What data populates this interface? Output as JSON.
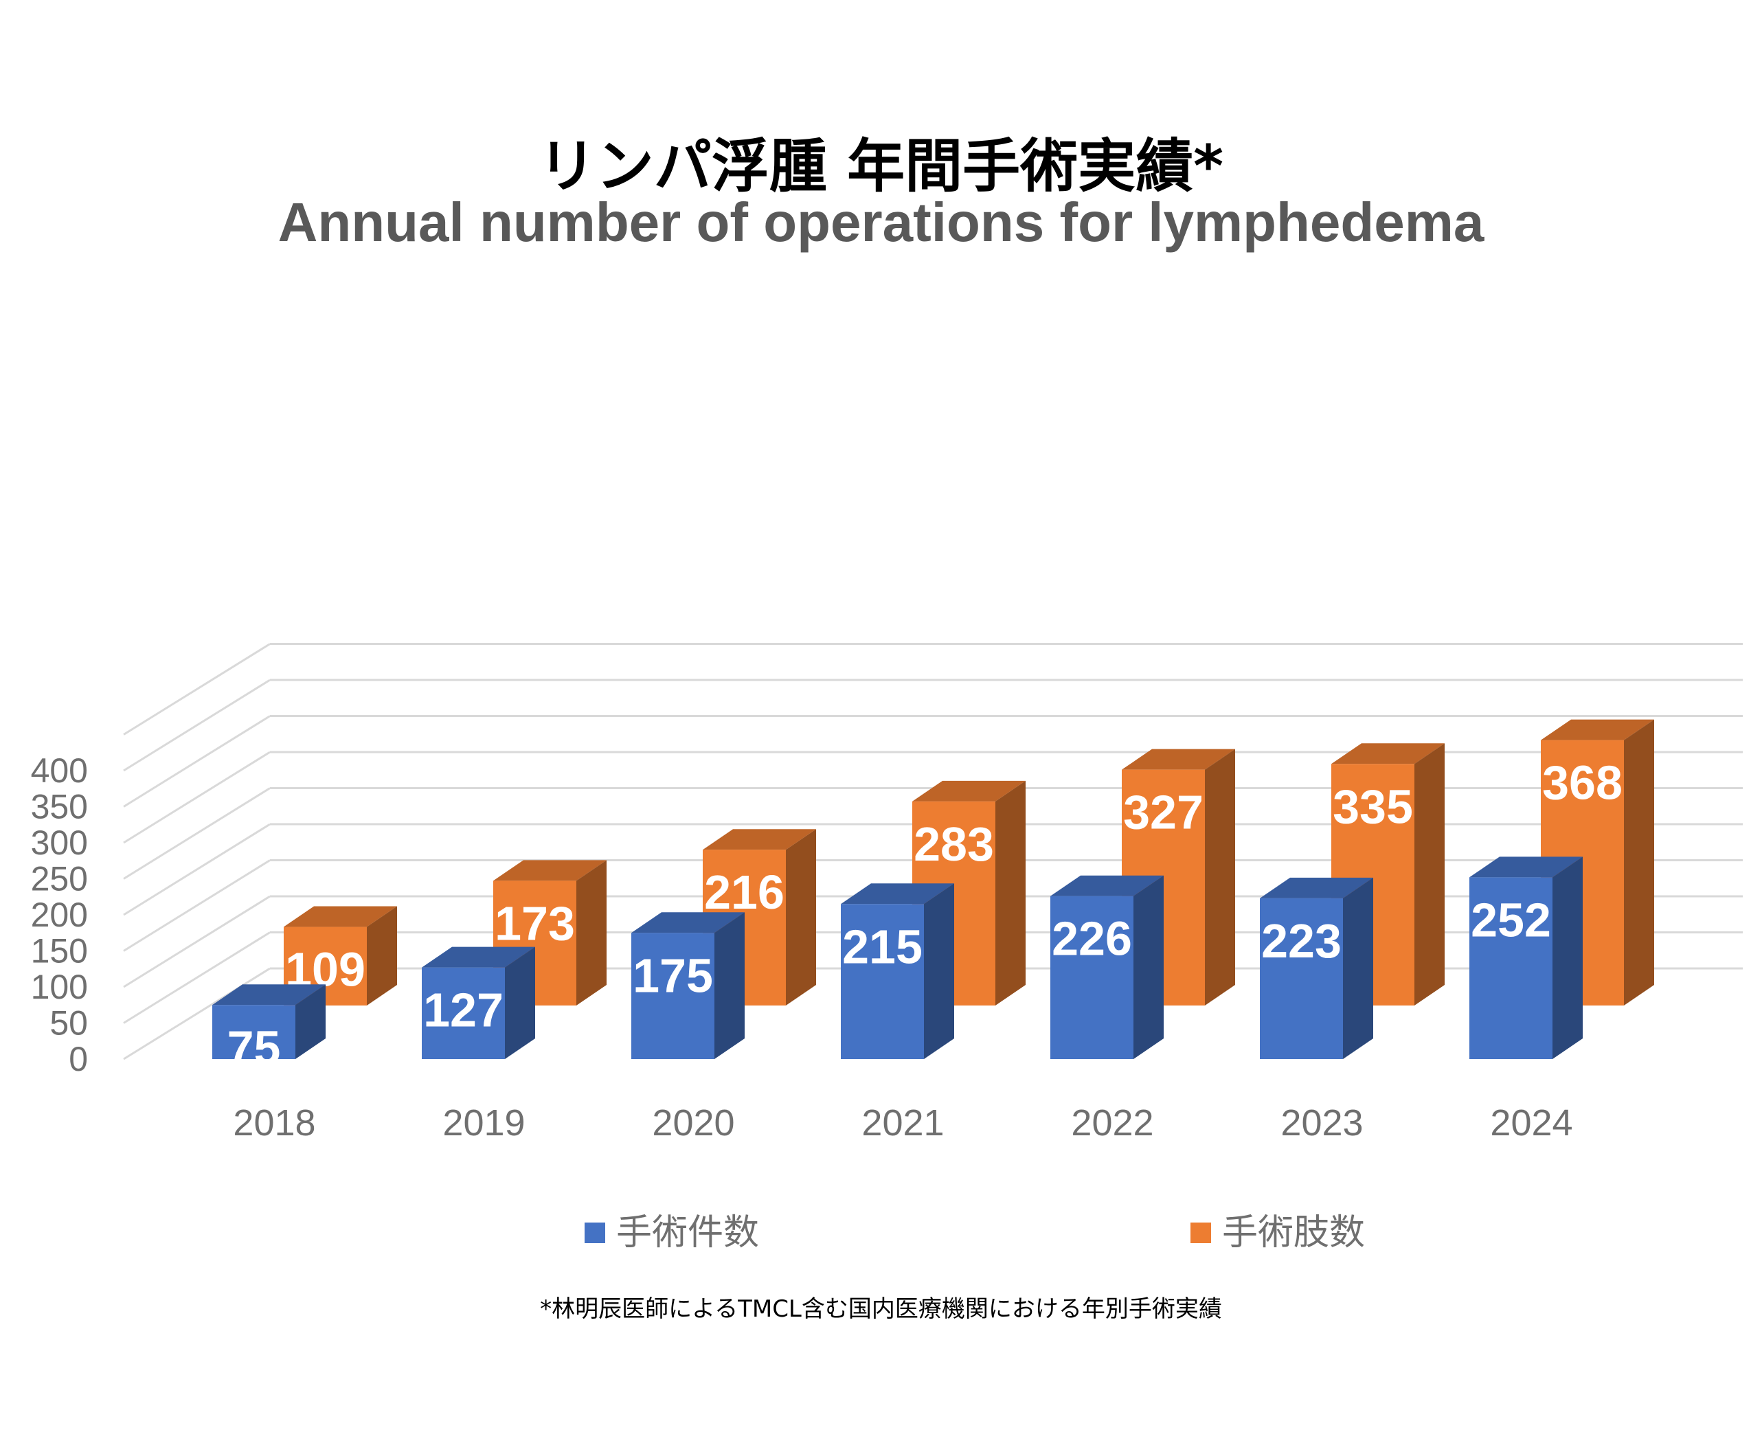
{
  "title_jp": "リンパ浮腫 年間手術実績*",
  "title_en": "Annual number of operations for lymphedema",
  "footnote": "*林明辰医師によるTMCL含む国内医療機関における年別手術実績",
  "colors": {
    "series1": "#4472c4",
    "series2": "#ed7d31",
    "grid": "#d9d9d9",
    "tick": "#6f6f6f"
  },
  "chart_data": {
    "type": "bar",
    "categories": [
      "2018",
      "2019",
      "2020",
      "2021",
      "2022",
      "2023",
      "2024"
    ],
    "series": [
      {
        "name": "手術件数",
        "values": [
          75,
          127,
          175,
          215,
          226,
          223,
          252
        ],
        "color": "#4472c4"
      },
      {
        "name": "手術肢数",
        "values": [
          109,
          173,
          216,
          283,
          327,
          335,
          368
        ],
        "color": "#ed7d31"
      }
    ],
    "ylim": [
      0,
      400
    ],
    "yticks": [
      0,
      50,
      100,
      150,
      200,
      250,
      300,
      350,
      400
    ],
    "grid": true,
    "data_labels": true,
    "legend": "bottom",
    "style": "3d-clustered-column"
  }
}
